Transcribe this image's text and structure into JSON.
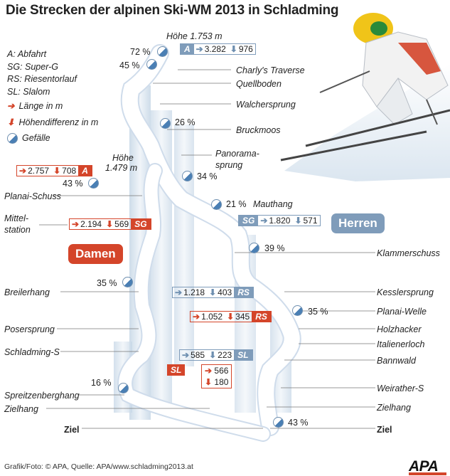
{
  "title": "Die Strecken der alpinen Ski-WM 2013 in Schladming",
  "legend": {
    "abbr": [
      "A: Abfahrt",
      "SG: Super-G",
      "RS: Riesentorlauf",
      "SL: Slalom"
    ],
    "length": "Länge in m",
    "height_diff": "Höhendifferenz in m",
    "slope": "Gefälle"
  },
  "heights": {
    "top": "Höhe 1.753 m",
    "women_line1": "Höhe",
    "women_line2": "1.479 m"
  },
  "teams": {
    "men": "Herren",
    "women": "Damen"
  },
  "colors": {
    "accent_red": "#d4452a",
    "accent_blue": "#7f9cba"
  },
  "women_labels": {
    "planai_schuss": "Planai-Schuss",
    "mittel_1": "Mittel-",
    "mittel_2": "station",
    "breilerhang": "Breilerhang",
    "posersprung": "Posersprung",
    "schladming_s": "Schladming-S",
    "spreitzenberghang": "Spreitzenberghang",
    "zielhang": "Zielhang",
    "ziel": "Ziel"
  },
  "men_labels": {
    "charlys": "Charly's Traverse",
    "quellboden": "Quellboden",
    "walchersprung": "Walchersprung",
    "bruckmoos": "Bruckmoos",
    "panorama_1": "Panorama-",
    "panorama_2": "sprung",
    "mauthang": "Mauthang",
    "klammerschuss": "Klammerschuss",
    "kesslersprung": "Kesslersprung",
    "planai_welle": "Planai-Welle",
    "holzhacker": "Holzhacker",
    "italienerloch": "Italienerloch",
    "bannwald": "Bannwald",
    "weirather": "Weirather-S",
    "zielhang": "Zielhang",
    "ziel": "Ziel"
  },
  "slopes": {
    "p72": "72 %",
    "p45": "45 %",
    "p26": "26 %",
    "p34": "34 %",
    "p43a": "43 %",
    "p21": "21 %",
    "p39": "39 %",
    "p35a": "35 %",
    "p35b": "35 %",
    "p16": "16 %",
    "p43b": "43 %"
  },
  "badges": {
    "men_a": {
      "tag": "A",
      "length": "3.282",
      "diff": "976"
    },
    "men_sg": {
      "tag": "SG",
      "length": "1.820",
      "diff": "571"
    },
    "men_rs": {
      "tag": "RS",
      "length": "1.218",
      "diff": "403"
    },
    "men_sl": {
      "tag": "SL",
      "length": "585",
      "diff": "223"
    },
    "women_a": {
      "tag": "A",
      "length": "2.757",
      "diff": "708"
    },
    "women_sg": {
      "tag": "SG",
      "length": "2.194",
      "diff": "569"
    },
    "women_rs": {
      "tag": "RS",
      "length": "1.052",
      "diff": "345"
    },
    "women_sl": {
      "tag": "SL",
      "length": "566",
      "diff": "180"
    }
  },
  "footer": "Grafik/Foto: © APA, Quelle: APA/www.schladming2013.at",
  "logo": "APA"
}
